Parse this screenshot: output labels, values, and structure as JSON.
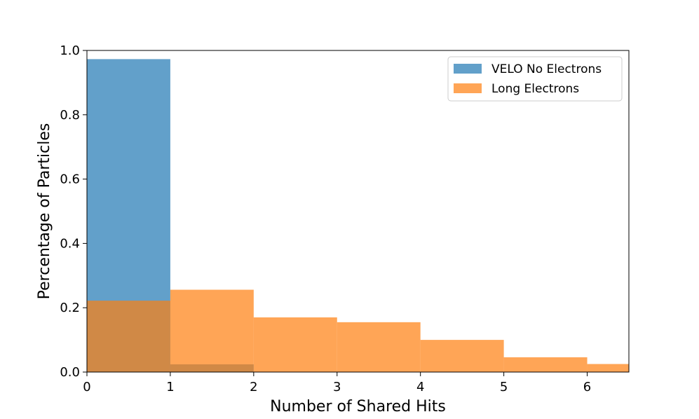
{
  "chart_data": {
    "type": "bar",
    "title": "",
    "xlabel": "Number of Shared Hits",
    "ylabel": "Percentage of Particles",
    "xlim": [
      0,
      6.5
    ],
    "ylim": [
      0,
      1.0
    ],
    "xticks": [
      "0",
      "1",
      "2",
      "3",
      "4",
      "5",
      "6"
    ],
    "yticks": [
      "0.0",
      "0.2",
      "0.4",
      "0.6",
      "0.8",
      "1.0"
    ],
    "bin_edges": [
      0,
      1,
      2,
      3,
      4,
      5,
      6,
      7
    ],
    "grid": false,
    "legend_position": "top-right",
    "series": [
      {
        "name": "VELO No Electrons",
        "color": "#1f77b4",
        "opacity": 0.7,
        "values": [
          0.973,
          0.024,
          0.001,
          0.0,
          0.0,
          0.0,
          0.0
        ]
      },
      {
        "name": "Long Electrons",
        "color": "#ff7f0e",
        "opacity": 0.7,
        "values": [
          0.222,
          0.256,
          0.17,
          0.155,
          0.1,
          0.046,
          0.025
        ]
      }
    ]
  }
}
